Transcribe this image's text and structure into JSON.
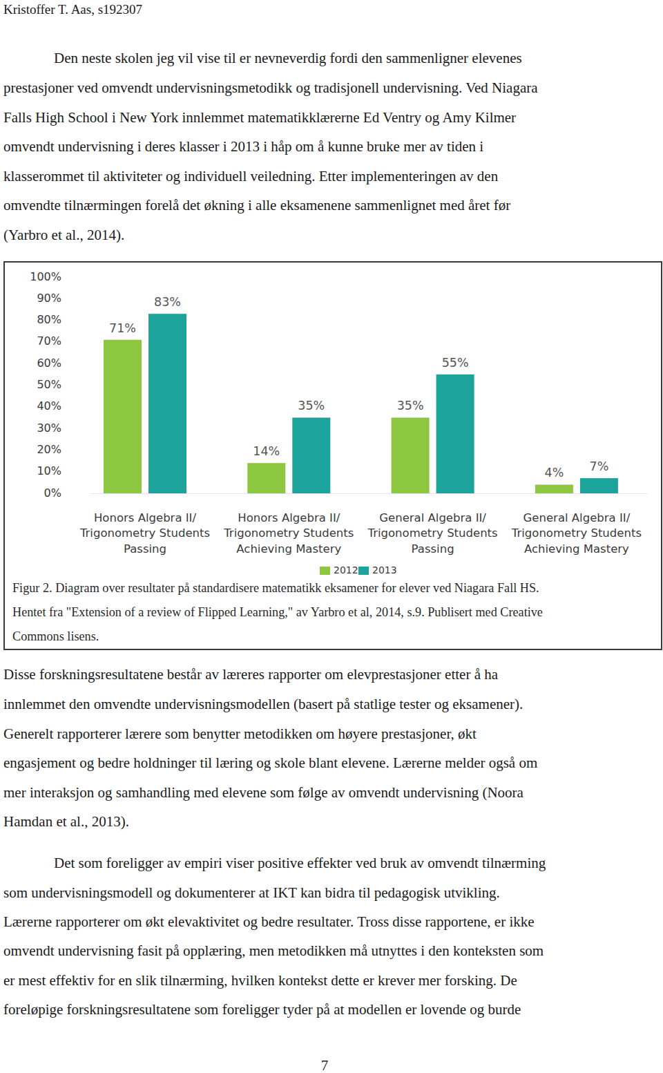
{
  "header": {
    "author": "Kristoffer T. Aas, s192307"
  },
  "paragraphs_top": [
    {
      "lines": [
        "Den neste skolen jeg vil vise til er nevneverdig fordi den sammenligner elevenes",
        "prestasjoner ved omvendt undervisningsmetodikk og tradisjonell undervisning. Ved Niagara",
        "Falls High School i New York innlemmet matematikklærerne Ed Ventry og Amy Kilmer",
        "omvendt undervisning i deres klasser i 2013 i håp om å kunne bruke mer av tiden i",
        "klasserommet til aktiviteter og individuell veiledning. Etter implementeringen av den",
        "omvendte tilnærmingen forelå det økning i alle eksamenene sammenlignet med året før",
        "(Yarbro et al., 2014)."
      ]
    }
  ],
  "chart_data": {
    "type": "bar",
    "categories": [
      "Honors Algebra II/\nTrigonometry Students\nPassing",
      "Honors Algebra II/\nTrigonometry Students\nAchieving Mastery",
      "General Algebra II/\nTrigonometry Students\nPassing",
      "General Algebra II/\nTrigonometry Students\nAchieving Mastery"
    ],
    "series": [
      {
        "name": "2012",
        "color": "#8dc63f",
        "values": [
          71,
          14,
          35,
          4
        ],
        "value_labels": [
          "71%",
          "14%",
          "35%",
          "4%"
        ]
      },
      {
        "name": "2013",
        "color": "#1ba39c",
        "values": [
          83,
          35,
          55,
          7
        ],
        "value_labels": [
          "83%",
          "35%",
          "55%",
          "7%"
        ]
      }
    ],
    "ylim": [
      0,
      100
    ],
    "yticks": [
      {
        "value": 0,
        "label": "0%"
      },
      {
        "value": 10,
        "label": "10%"
      },
      {
        "value": 20,
        "label": "20%"
      },
      {
        "value": 30,
        "label": "30%"
      },
      {
        "value": 40,
        "label": "40%"
      },
      {
        "value": 50,
        "label": "50%"
      },
      {
        "value": 60,
        "label": "60%"
      },
      {
        "value": 70,
        "label": "70%"
      },
      {
        "value": 80,
        "label": "80%"
      },
      {
        "value": 90,
        "label": "90%"
      },
      {
        "value": 100,
        "label": "100%"
      }
    ],
    "grid": false,
    "legend": "bottom",
    "data_labels": true
  },
  "caption": {
    "lines": [
      "Figur 2.  Diagram over resultater på standardisere matematikk eksamener for elever ved Niagara Fall HS.",
      "Hentet fra \"Extension of a review of Flipped Learning,\" av Yarbro et al, 2014, s.9. Publisert med Creative",
      "Commons lisens."
    ]
  },
  "paragraphs_bottom": [
    {
      "lines": [
        "Disse forskningsresultatene består av læreres rapporter om elevprestasjoner etter å ha",
        "innlemmet den omvendte undervisningsmodellen (basert på statlige tester og eksamener).",
        "Generelt rapporterer lærere som benytter metodikken om høyere prestasjoner, økt",
        "engasjement og bedre holdninger til læring og skole blant elevene. Lærerne melder også om",
        "mer interaksjon og samhandling med elevene som følge av omvendt undervisning (Noora",
        "Hamdan et al., 2013)."
      ]
    },
    {
      "lines": [
        "Det som foreligger av empiri viser positive effekter ved bruk av omvendt tilnærming",
        "som undervisningsmodell og dokumenterer at IKT kan bidra til pedagogisk utvikling.",
        "Lærerne rapporterer om økt elevaktivitet og bedre resultater. Tross disse rapportene, er ikke",
        "omvendt undervisning fasit på opplæring, men metodikken må utnyttes i den konteksten som",
        "er mest effektiv for en slik tilnærming, hvilken kontekst dette er krever mer forsking. De",
        "foreløpige forskningsresultatene som foreligger tyder på at modellen er lovende og burde"
      ]
    }
  ],
  "page_number": "7"
}
